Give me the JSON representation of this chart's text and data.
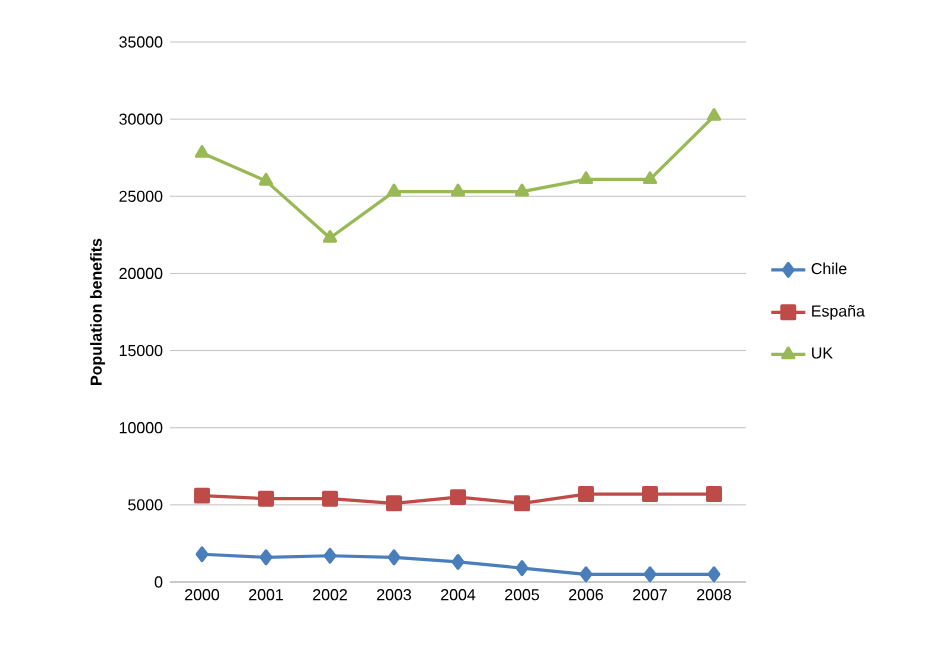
{
  "chart_data": {
    "type": "line",
    "ylabel": "Population benefits",
    "categories": [
      "2000",
      "2001",
      "2002",
      "2003",
      "2004",
      "2005",
      "2006",
      "2007",
      "2008"
    ],
    "series": [
      {
        "name": "Chile",
        "color": "#4a7ebb",
        "marker": "diamond",
        "values": [
          1800,
          1600,
          1700,
          1600,
          1300,
          900,
          500,
          500,
          500
        ]
      },
      {
        "name": "España",
        "color": "#be4b48",
        "marker": "square",
        "values": [
          5600,
          5400,
          5400,
          5100,
          5500,
          5100,
          5700,
          5700,
          5700
        ]
      },
      {
        "name": "UK",
        "color": "#98b954",
        "marker": "triangle",
        "values": [
          27800,
          26000,
          22300,
          25300,
          25300,
          25300,
          26100,
          26100,
          30200
        ]
      }
    ],
    "ylim": [
      0,
      35000
    ],
    "yticks": [
      0,
      5000,
      10000,
      15000,
      20000,
      25000,
      30000,
      35000
    ],
    "grid": "y",
    "legend": "right",
    "line_style": "solid"
  }
}
